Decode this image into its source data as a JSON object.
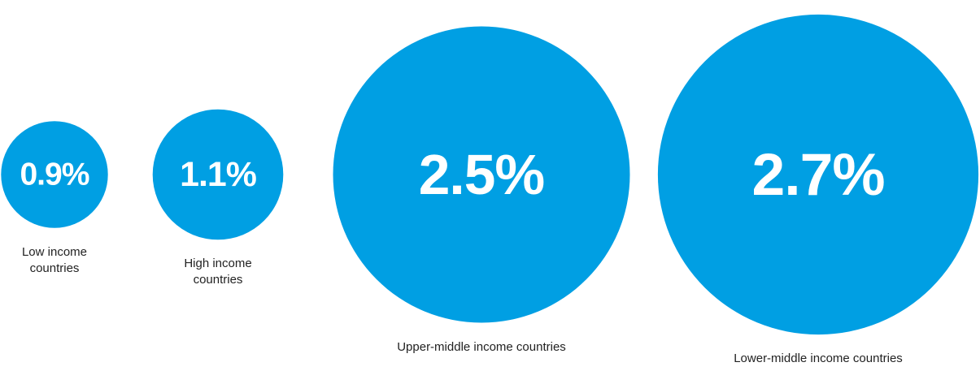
{
  "chart_data": {
    "type": "bubble",
    "categories": [
      "Low income countries",
      "High income countries",
      "Upper-middle income countries",
      "Lower-middle income countries"
    ],
    "values": [
      0.9,
      1.1,
      2.5,
      2.7
    ],
    "value_labels": [
      "0.9%",
      "1.1%",
      "2.5%",
      "2.7%"
    ],
    "color": "#009fe3"
  }
}
